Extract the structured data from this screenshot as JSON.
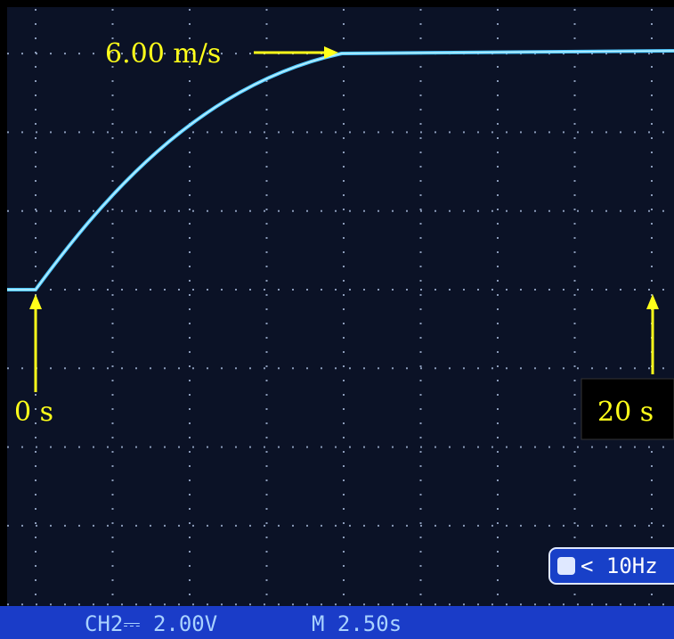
{
  "annotations": {
    "speed": "6.00 m/s",
    "start": "0 s",
    "end": "20 s"
  },
  "status_bar": {
    "channel": "CH2⎓ 2.00V",
    "timebase": "M 2.50s",
    "trigger": "< 10Hz"
  }
}
